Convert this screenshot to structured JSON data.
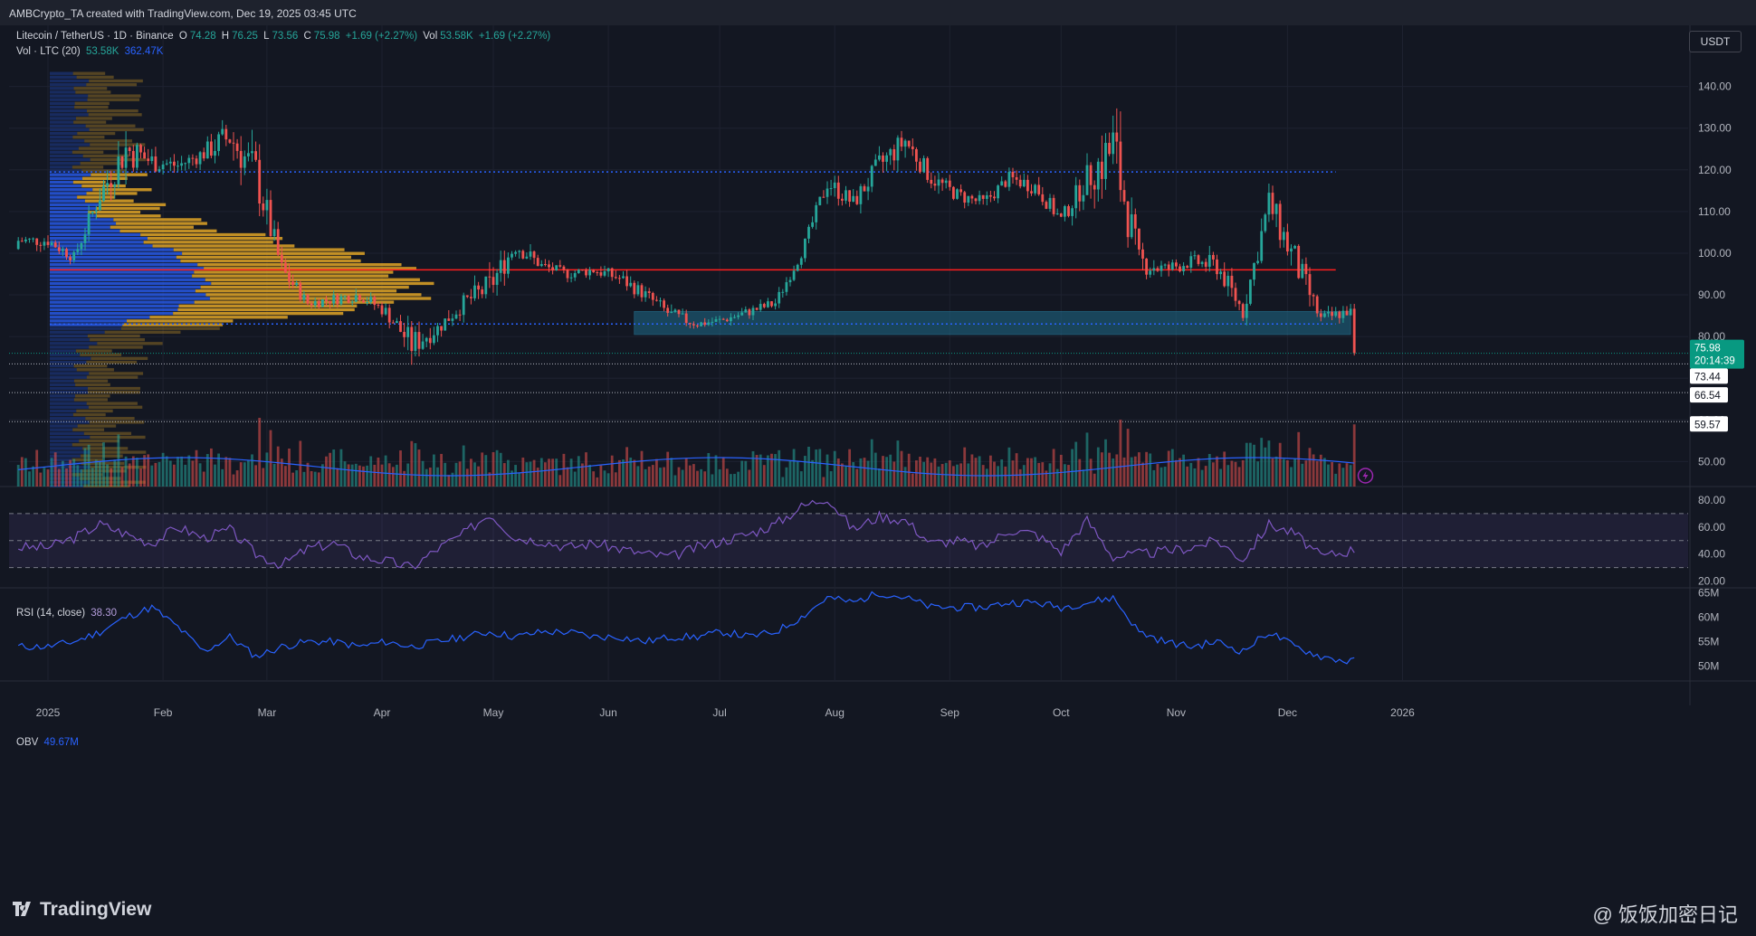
{
  "header": {
    "credit": "AMBCrypto_TA created with TradingView.com, Dec 19, 2025 03:45 UTC"
  },
  "legend": {
    "symbol": "Litecoin / TetherUS · 1D · Binance",
    "o_label": "O",
    "o": "74.28",
    "h_label": "H",
    "h": "76.25",
    "l_label": "L",
    "l": "73.56",
    "c_label": "C",
    "c": "75.98",
    "change": "+1.69 (+2.27%)",
    "vol_label": "Vol",
    "vol": "53.58K",
    "vol_change": "+1.69 (+2.27%)",
    "vol_ind": "Vol · LTC (20)",
    "vol_v1": "53.58K",
    "vol_v2": "362.47K",
    "rsi": "RSI (14, close)",
    "rsi_val": "38.30",
    "obv": "OBV",
    "obv_val": "49.67M"
  },
  "currency_button": "USDT",
  "footer": {
    "logo": "TradingView",
    "watermark": "@ 饭饭加密日记"
  },
  "colors": {
    "bg": "#131722",
    "up": "#26a69a",
    "down": "#ef5350",
    "vp_up": "#2962ff",
    "vp_down": "#e0a526",
    "resistance": "#ff1e1e",
    "zone": "#1f6b8a",
    "rsi_line": "#7e57c2",
    "obv_line": "#2962ff",
    "vol_ma": "#2962ff",
    "price_badge": "#089981"
  },
  "icons": {
    "replay": "lightning-icon",
    "logo": "tradingview-logo-icon"
  },
  "chart_data": [
    {
      "type": "candlestick",
      "pair": "LTC/USDT",
      "ylim": [
        44,
        146
      ],
      "y_ticks": [
        "50.00",
        "60.00",
        "70.00",
        "80.00",
        "90.00",
        "100.00",
        "110.00",
        "120.00",
        "130.00",
        "140.00"
      ],
      "x_ticks": [
        "2025",
        "Feb",
        "Mar",
        "Apr",
        "May",
        "Jun",
        "Jul",
        "Aug",
        "Sep",
        "Oct",
        "Nov",
        "Dec",
        "2026"
      ],
      "x_tick_days": [
        0,
        31,
        59,
        90,
        120,
        151,
        181,
        212,
        243,
        273,
        304,
        334,
        365
      ],
      "closes_weekly": [
        103,
        99,
        114,
        125,
        122,
        121,
        124,
        128,
        119,
        96,
        88,
        89,
        90,
        86,
        78,
        82,
        88,
        92,
        102,
        97,
        95,
        96,
        94,
        90,
        85,
        83,
        84,
        86,
        88,
        100,
        117,
        112,
        121,
        127,
        118,
        114,
        112,
        118,
        116,
        108,
        118,
        125,
        98,
        96,
        98,
        97,
        86,
        112,
        98,
        84,
        86,
        84,
        82,
        75.98
      ],
      "highs_weekly": [
        107,
        104,
        118,
        140,
        129,
        126,
        129,
        141,
        125,
        100,
        92,
        92,
        93,
        89,
        85,
        86,
        92,
        107,
        105,
        100,
        98,
        98,
        97,
        93,
        88,
        86,
        87,
        89,
        92,
        104,
        122,
        118,
        128,
        134,
        122,
        117,
        116,
        121,
        120,
        113,
        125,
        136,
        106,
        100,
        102,
        104,
        93,
        115,
        111,
        89,
        89,
        88,
        86,
        80
      ],
      "lows_weekly": [
        98,
        96,
        101,
        113,
        113,
        116,
        117,
        116,
        93,
        85,
        85,
        84,
        84,
        80,
        64,
        75,
        80,
        87,
        91,
        92,
        91,
        90,
        87,
        84,
        77,
        80,
        81,
        82,
        84,
        97,
        109,
        106,
        111,
        117,
        110,
        107,
        106,
        112,
        108,
        103,
        106,
        83,
        87,
        88,
        93,
        89,
        80,
        94,
        86,
        79,
        81,
        77,
        76,
        73.56
      ],
      "last_price": "75.98",
      "countdown": "20:14:39",
      "price_levels": [
        "73.44",
        "66.54",
        "59.57"
      ],
      "price_level_values": [
        73.44,
        66.54,
        59.57
      ],
      "resistance_line": 96,
      "volume_profile_value_area": [
        83,
        119.5
      ],
      "support_zone": [
        80.5,
        86
      ]
    },
    {
      "type": "line",
      "name": "RSI (14, close)",
      "ylim": [
        15,
        90
      ],
      "y_ticks": [
        "20.00",
        "40.00",
        "60.00",
        "80.00"
      ],
      "bands": [
        30,
        50,
        70
      ],
      "values_weekly": [
        45,
        52,
        62,
        55,
        48,
        60,
        52,
        58,
        40,
        32,
        44,
        48,
        38,
        35,
        30,
        44,
        55,
        70,
        52,
        50,
        45,
        48,
        44,
        40,
        38,
        45,
        50,
        55,
        62,
        75,
        82,
        58,
        68,
        65,
        48,
        50,
        45,
        58,
        55,
        42,
        65,
        38,
        40,
        42,
        45,
        50,
        36,
        62,
        55,
        38,
        42,
        48,
        40,
        38.3
      ]
    },
    {
      "type": "line",
      "name": "OBV",
      "ylim": [
        47,
        66
      ],
      "y_ticks": [
        "50M",
        "55M",
        "60M",
        "65M"
      ],
      "values_weekly": [
        54,
        55,
        57,
        60,
        62,
        58,
        53,
        56,
        52,
        54,
        55,
        55,
        54,
        55,
        54,
        55,
        56,
        57,
        56,
        57,
        57,
        56,
        56,
        55,
        56,
        56,
        57,
        56,
        57,
        60,
        64,
        63,
        65,
        64,
        62,
        62,
        62,
        63,
        63,
        62,
        63,
        64,
        57,
        55,
        54,
        55,
        53,
        57,
        54,
        52,
        51,
        51,
        50,
        49.67
      ]
    }
  ]
}
